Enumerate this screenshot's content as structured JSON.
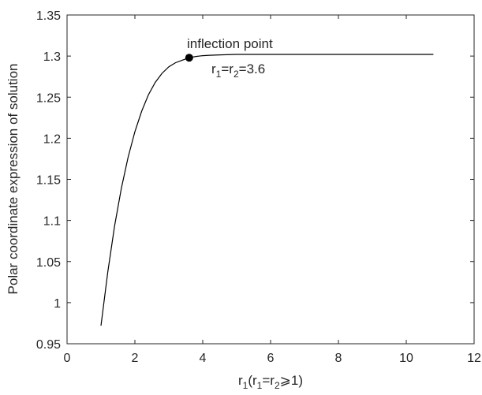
{
  "chart_data": {
    "type": "line",
    "title": "",
    "xlabel": {
      "base": "r",
      "sub1": "1",
      "open": "(r",
      "sub2": "1",
      "mid": "=r",
      "sub3": "2",
      "close": "⩾1)"
    },
    "ylabel": "Polar coordinate expression of solution",
    "xlim": [
      0,
      12
    ],
    "ylim": [
      0.95,
      1.35
    ],
    "xticks": [
      0,
      2,
      4,
      6,
      8,
      10,
      12
    ],
    "xtick_labels": [
      "0",
      "2",
      "4",
      "6",
      "8",
      "10",
      "12"
    ],
    "yticks": [
      0.95,
      1.0,
      1.05,
      1.1,
      1.15,
      1.2,
      1.25,
      1.3,
      1.35
    ],
    "ytick_labels": [
      "0.95",
      "1",
      "1.05",
      "1.1",
      "1.15",
      "1.2",
      "1.25",
      "1.3",
      "1.35"
    ],
    "grid": false,
    "line_color": "#000000",
    "series": [
      {
        "x": [
          1.0,
          1.2,
          1.4,
          1.6,
          1.8,
          2.0,
          2.2,
          2.4,
          2.6,
          2.8,
          3.0,
          3.2,
          3.4,
          3.6,
          3.8,
          4.0,
          4.2,
          4.5,
          5.0,
          5.5,
          6.0,
          7.0,
          8.0,
          9.0,
          10.0,
          10.8
        ],
        "y": [
          0.972,
          1.037,
          1.093,
          1.139,
          1.177,
          1.208,
          1.233,
          1.253,
          1.268,
          1.279,
          1.287,
          1.292,
          1.295,
          1.298,
          1.2995,
          1.3005,
          1.301,
          1.3015,
          1.302,
          1.302,
          1.302,
          1.302,
          1.302,
          1.302,
          1.302,
          1.302
        ]
      }
    ],
    "annotation": {
      "point": {
        "x": 3.6,
        "y": 1.298
      },
      "label": "inflection point",
      "formula": {
        "r1": "r",
        "sub1": "1",
        "eq": "=r",
        "sub2": "2",
        "value": "=3.6"
      }
    }
  }
}
